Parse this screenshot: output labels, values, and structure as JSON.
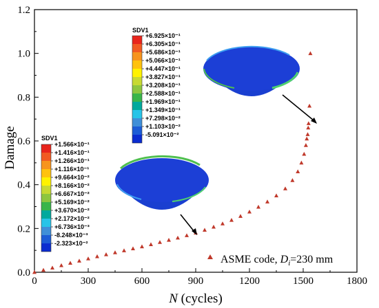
{
  "chart_data": {
    "type": "scatter",
    "xlabel_italic": "N",
    "xlabel_rest": " (cycles)",
    "ylabel": "Damage",
    "xlim": [
      0,
      1800
    ],
    "ylim": [
      0,
      1.2
    ],
    "xticks": [
      "0",
      "300",
      "600",
      "900",
      "1200",
      "1500",
      "1800"
    ],
    "yticks": [
      "0.0",
      "0.2",
      "0.4",
      "0.6",
      "0.8",
      "1.0",
      "1.2"
    ],
    "marker_color": "#c0392b",
    "legend": {
      "text_before": "ASME code, ",
      "italic": "D",
      "subscript": "i",
      "text_after": "=230 mm"
    },
    "series": [
      {
        "points": [
          [
            0,
            0.0
          ],
          [
            50,
            0.01
          ],
          [
            100,
            0.02
          ],
          [
            150,
            0.031
          ],
          [
            200,
            0.042
          ],
          [
            250,
            0.052
          ],
          [
            300,
            0.062
          ],
          [
            350,
            0.072
          ],
          [
            400,
            0.081
          ],
          [
            450,
            0.09
          ],
          [
            500,
            0.099
          ],
          [
            550,
            0.108
          ],
          [
            600,
            0.117
          ],
          [
            650,
            0.127
          ],
          [
            700,
            0.137
          ],
          [
            750,
            0.147
          ],
          [
            800,
            0.157
          ],
          [
            850,
            0.168
          ],
          [
            900,
            0.18
          ],
          [
            950,
            0.193
          ],
          [
            1000,
            0.207
          ],
          [
            1050,
            0.222
          ],
          [
            1100,
            0.238
          ],
          [
            1150,
            0.256
          ],
          [
            1200,
            0.276
          ],
          [
            1250,
            0.298
          ],
          [
            1300,
            0.322
          ],
          [
            1350,
            0.35
          ],
          [
            1400,
            0.382
          ],
          [
            1440,
            0.42
          ],
          [
            1470,
            0.46
          ],
          [
            1490,
            0.5
          ],
          [
            1505,
            0.54
          ],
          [
            1515,
            0.58
          ],
          [
            1520,
            0.61
          ],
          [
            1525,
            0.63
          ],
          [
            1528,
            0.66
          ],
          [
            1530,
            0.68
          ],
          [
            1535,
            0.76
          ],
          [
            1540,
            1.0
          ]
        ]
      }
    ]
  },
  "contour_legends": [
    {
      "title": "SDV1",
      "values": [
        "+6.925×10⁻¹",
        "+6.305×10⁻¹",
        "+5.686×10⁻¹",
        "+5.066×10⁻¹",
        "+4.447×10⁻¹",
        "+3.827×10⁻¹",
        "+3.208×10⁻¹",
        "+2.588×10⁻¹",
        "+1.969×10⁻¹",
        "+1.349×10⁻¹",
        "+7.298×10⁻²",
        "+1.103×10⁻²",
        "-5.091×10⁻²"
      ],
      "colors": [
        "#e8241c",
        "#f15a22",
        "#f7941d",
        "#ffc20e",
        "#fff200",
        "#c7d932",
        "#8dc63f",
        "#39b54a",
        "#00a99d",
        "#27c4e8",
        "#3f8fd8",
        "#1c5cd6",
        "#0a2cd0"
      ]
    },
    {
      "title": "SDV1",
      "values": [
        "+1.566×10⁻¹",
        "+1.416×10⁻¹",
        "+1.266×10⁻¹",
        "+1.116×10⁻¹",
        "+9.664×10⁻²",
        "+8.166×10⁻²",
        "+6.667×10⁻²",
        "+5.169×10⁻²",
        "+3.670×10⁻²",
        "+2.172×10⁻²",
        "+6.736×10⁻³",
        "-8.248×10⁻³",
        "-2.323×10⁻²"
      ],
      "colors": [
        "#e8241c",
        "#f15a22",
        "#f7941d",
        "#ffc20e",
        "#fff200",
        "#c7d932",
        "#8dc63f",
        "#39b54a",
        "#00a99d",
        "#27c4e8",
        "#3f8fd8",
        "#1c5cd6",
        "#0a2cd0"
      ]
    }
  ]
}
